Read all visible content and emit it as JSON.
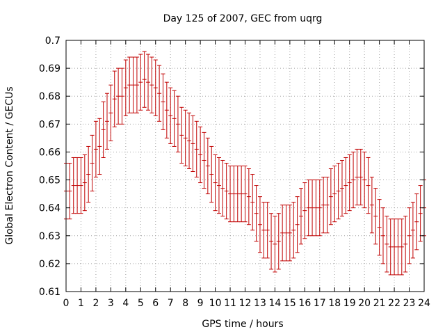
{
  "chart_data": {
    "type": "errorbar",
    "title": "Day 125 of 2007, GEC from uqrg",
    "xlabel": "GPS time / hours",
    "ylabel": "Global Electron Content / GECUs",
    "xlim": [
      0,
      24
    ],
    "ylim": [
      0.61,
      0.7
    ],
    "x_ticks": [
      "0",
      "1",
      "2",
      "3",
      "4",
      "5",
      "6",
      "7",
      "8",
      "9",
      "10",
      "11",
      "12",
      "13",
      "14",
      "15",
      "16",
      "17",
      "18",
      "19",
      "20",
      "21",
      "22",
      "23",
      "24"
    ],
    "y_ticks": [
      "0.61",
      "0.62",
      "0.63",
      "0.64",
      "0.65",
      "0.66",
      "0.67",
      "0.68",
      "0.69",
      "0.7"
    ],
    "grid": true,
    "series_color": "#c00000",
    "error_halfwidth": 0.01,
    "x": [
      0,
      0.25,
      0.5,
      0.75,
      1,
      1.25,
      1.5,
      1.75,
      2,
      2.25,
      2.5,
      2.75,
      3,
      3.25,
      3.5,
      3.75,
      4,
      4.25,
      4.5,
      4.75,
      5,
      5.25,
      5.5,
      5.75,
      6,
      6.25,
      6.5,
      6.75,
      7,
      7.25,
      7.5,
      7.75,
      8,
      8.25,
      8.5,
      8.75,
      9,
      9.25,
      9.5,
      9.75,
      10,
      10.25,
      10.5,
      10.75,
      11,
      11.25,
      11.5,
      11.75,
      12,
      12.25,
      12.5,
      12.75,
      13,
      13.25,
      13.5,
      13.75,
      14,
      14.25,
      14.5,
      14.75,
      15,
      15.25,
      15.5,
      15.75,
      16,
      16.25,
      16.5,
      16.75,
      17,
      17.25,
      17.5,
      17.75,
      18,
      18.25,
      18.5,
      18.75,
      19,
      19.25,
      19.5,
      19.75,
      20,
      20.25,
      20.5,
      20.75,
      21,
      21.25,
      21.5,
      21.75,
      22,
      22.25,
      22.5,
      22.75,
      23,
      23.25,
      23.5,
      23.75,
      24
    ],
    "values": [
      0.646,
      0.646,
      0.648,
      0.648,
      0.648,
      0.649,
      0.652,
      0.656,
      0.661,
      0.662,
      0.668,
      0.671,
      0.674,
      0.679,
      0.68,
      0.68,
      0.683,
      0.684,
      0.684,
      0.684,
      0.685,
      0.686,
      0.685,
      0.684,
      0.683,
      0.681,
      0.678,
      0.675,
      0.673,
      0.672,
      0.67,
      0.666,
      0.665,
      0.664,
      0.663,
      0.661,
      0.659,
      0.657,
      0.655,
      0.652,
      0.649,
      0.648,
      0.647,
      0.646,
      0.645,
      0.645,
      0.645,
      0.645,
      0.645,
      0.644,
      0.642,
      0.638,
      0.634,
      0.632,
      0.632,
      0.628,
      0.627,
      0.628,
      0.631,
      0.631,
      0.631,
      0.632,
      0.634,
      0.637,
      0.639,
      0.64,
      0.64,
      0.64,
      0.64,
      0.641,
      0.641,
      0.644,
      0.645,
      0.646,
      0.647,
      0.648,
      0.649,
      0.65,
      0.651,
      0.651,
      0.65,
      0.648,
      0.641,
      0.637,
      0.633,
      0.63,
      0.627,
      0.626,
      0.626,
      0.626,
      0.626,
      0.627,
      0.63,
      0.632,
      0.635,
      0.638,
      0.64
    ]
  }
}
